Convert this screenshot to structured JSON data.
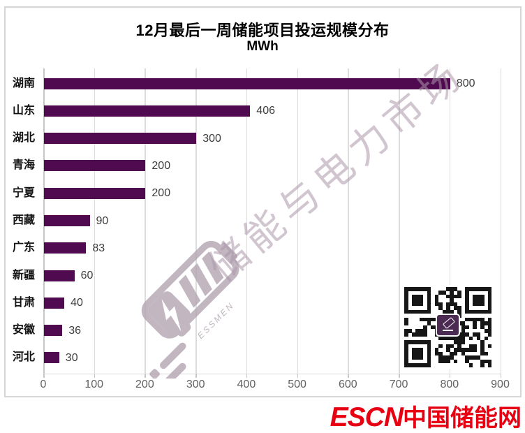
{
  "title": {
    "line1": "12月最后一周储能项目投运规模分布",
    "line2": "MWh"
  },
  "chart_data": {
    "type": "bar",
    "orientation": "horizontal",
    "title": "12月最后一周储能项目投运规模分布",
    "unit": "MWh",
    "categories": [
      "湖南",
      "山东",
      "湖北",
      "青海",
      "宁夏",
      "西藏",
      "广东",
      "新疆",
      "甘肃",
      "安徽",
      "河北"
    ],
    "values": [
      800,
      406,
      300,
      200,
      200,
      90,
      83,
      60,
      40,
      36,
      30
    ],
    "xlim": [
      0,
      900
    ],
    "x_ticks": [
      0,
      100,
      200,
      300,
      400,
      500,
      600,
      700,
      800,
      900
    ],
    "grid": true,
    "data_labels": true,
    "bar_color": "#4f0a50",
    "gridline_color": "#dcdcdc",
    "tick_label_color": "#616161",
    "value_label_color": "#3d3d3d"
  },
  "watermark": {
    "diagonal_text": "储能与电力市场",
    "logo_caption": "ESSMEN",
    "color": "#b3a5b2"
  },
  "footer": {
    "brand_prefix": "ESCN",
    "brand_suffix": "中国储能网",
    "brand_color": "#e60012"
  }
}
